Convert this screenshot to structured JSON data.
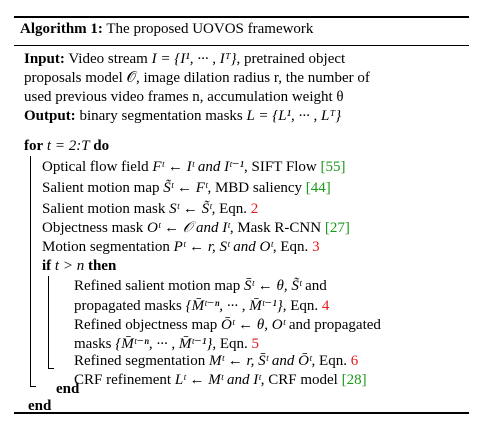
{
  "algorithm": {
    "label": "Algorithm 1:",
    "title": "The proposed UOVOS framework"
  },
  "input": {
    "keyword": "Input:",
    "line1": "Video stream",
    "line1_math": "I = {I¹, ··· , Iᵀ}",
    "line1_tail": ", pretrained object",
    "line2": "proposals model 𝒪, image dilation radius r, the number of",
    "line3": "used previous video frames n, accumulation weight θ"
  },
  "output": {
    "keyword": "Output:",
    "text": "binary segmentation masks",
    "math": "L = {L¹, ··· , Lᵀ}"
  },
  "loop": {
    "for_kw": "for",
    "for_expr": "t = 2:T",
    "do_kw": "do",
    "end_kw": "end"
  },
  "steps": [
    {
      "pre": "Optical flow field ",
      "math": "Fᵗ ← Iᵗ and Iᵗ⁻¹",
      "post": ", SIFT Flow ",
      "cite": "[55]",
      "eq": ""
    },
    {
      "pre": "Salient motion map ",
      "math": "S̃ᵗ ← Fᵗ",
      "post": ", MBD saliency ",
      "cite": "[44]",
      "eq": ""
    },
    {
      "pre": "Salient motion mask ",
      "math": "Sᵗ ← S̃ᵗ",
      "post": ", Eqn. ",
      "cite": "",
      "eq": "2"
    },
    {
      "pre": "Objectness mask ",
      "math": "Oᵗ ← 𝒪 and Iᵗ",
      "post": ", Mask R-CNN ",
      "cite": "[27]",
      "eq": ""
    },
    {
      "pre": "Motion segmentation ",
      "math": "Pᵗ ← r, Sᵗ and Oᵗ",
      "post": ", Eqn. ",
      "cite": "",
      "eq": "3"
    }
  ],
  "if_block": {
    "if_kw": "if",
    "cond": "t > n",
    "then_kw": "then",
    "end_kw": "end",
    "lines": [
      {
        "pre": "Refined salient motion map ",
        "math": "S̄ᵗ ← θ, S̃ᵗ",
        "post": " and",
        "cite": "",
        "eq": ""
      },
      {
        "pre": "propagated masks ",
        "math": "{M̄ᵗ⁻ⁿ, ··· , M̄ᵗ⁻¹}",
        "post": ", Eqn. ",
        "cite": "",
        "eq": "4"
      },
      {
        "pre": "Refined objectness map ",
        "math": "Ōᵗ ← θ, Oᵗ",
        "post": " and propagated",
        "cite": "",
        "eq": ""
      },
      {
        "pre": "masks ",
        "math": "{M̄ᵗ⁻ⁿ, ··· , M̄ᵗ⁻¹}",
        "post": ", Eqn. ",
        "cite": "",
        "eq": "5"
      },
      {
        "pre": "Refined segmentation ",
        "math": "Mᵗ ← r, S̄ᵗ and Ōᵗ",
        "post": ", Eqn. ",
        "cite": "",
        "eq": "6"
      },
      {
        "pre": "CRF refinement ",
        "math": "Lᵗ ← Mᵗ and Iᵗ",
        "post": ", CRF model ",
        "cite": "[28]",
        "eq": ""
      }
    ]
  },
  "colors": {
    "cite": "#1a9a1a",
    "eqref": "#e31a1c"
  }
}
